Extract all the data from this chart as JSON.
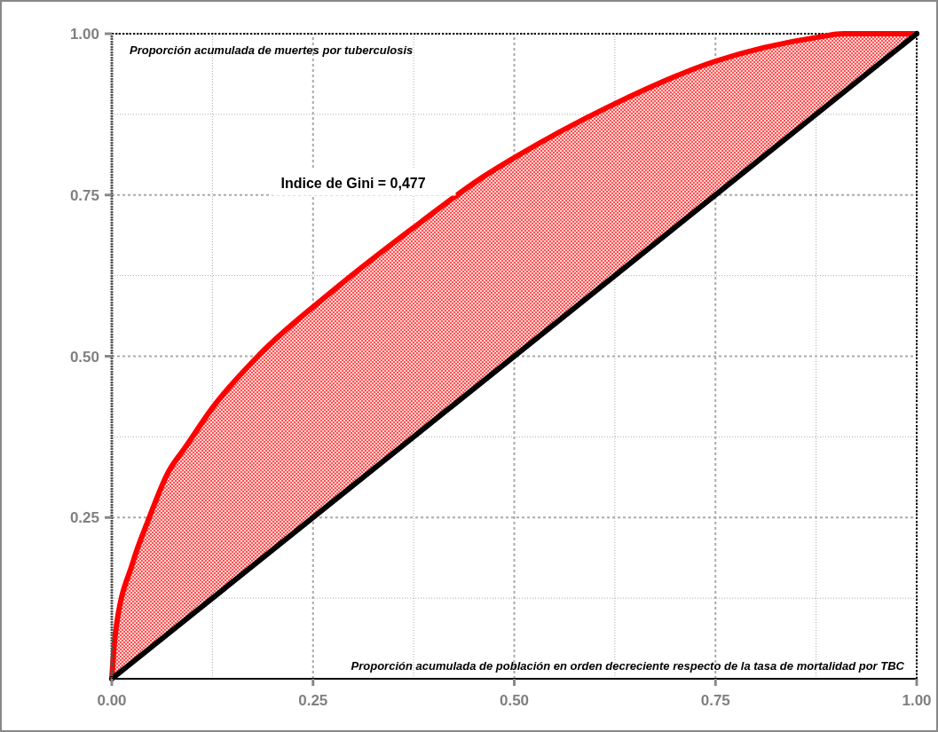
{
  "chart_data": {
    "type": "line",
    "xlabel": "Proporción acumulada de población en orden decreciente respecto de la tasa de mortalidad por TBC",
    "ylabel": "Proporción acumulada de muertes por tuberculosis",
    "annotations": [
      "Indice de Gini = 0,477"
    ],
    "series": [
      {
        "color": "#ff0000",
        "x": [
          0,
          0.004,
          0.026,
          0.045,
          0.07,
          0.092,
          0.125,
          0.183,
          0.275,
          0.384,
          0.46,
          0.503,
          0.616,
          0.749,
          0.879,
          0.909,
          1
        ],
        "values": [
          0,
          0.066,
          0.18,
          0.245,
          0.32,
          0.36,
          0.42,
          0.502,
          0.602,
          0.708,
          0.777,
          0.81,
          0.886,
          0.957,
          0.995,
          1,
          1
        ]
      },
      {
        "color": "#000000",
        "x": [
          0,
          1
        ],
        "values": [
          0,
          1
        ]
      }
    ],
    "xlim": [
      0,
      1
    ],
    "ylim": [
      0,
      1
    ],
    "xticks": [
      {
        "value": 0,
        "label": "0.00"
      },
      {
        "value": 0.125,
        "label": null
      },
      {
        "value": 0.25,
        "label": "0.25"
      },
      {
        "value": 0.375,
        "label": null
      },
      {
        "value": 0.5,
        "label": "0.50"
      },
      {
        "value": 0.625,
        "label": null
      },
      {
        "value": 0.75,
        "label": "0.75"
      },
      {
        "value": 0.875,
        "label": null
      },
      {
        "value": 1,
        "label": "1.00"
      }
    ],
    "yticks": [
      {
        "value": 0,
        "label": null
      },
      {
        "value": 0.125,
        "label": null
      },
      {
        "value": 0.25,
        "label": "0.25"
      },
      {
        "value": 0.375,
        "label": null
      },
      {
        "value": 0.5,
        "label": "0.50"
      },
      {
        "value": 0.625,
        "label": null
      },
      {
        "value": 0.75,
        "label": "0.75"
      },
      {
        "value": 0.875,
        "label": null
      },
      {
        "value": 1,
        "label": "1.00"
      }
    ],
    "grid": true,
    "marker": "none",
    "line_style": "solid"
  }
}
